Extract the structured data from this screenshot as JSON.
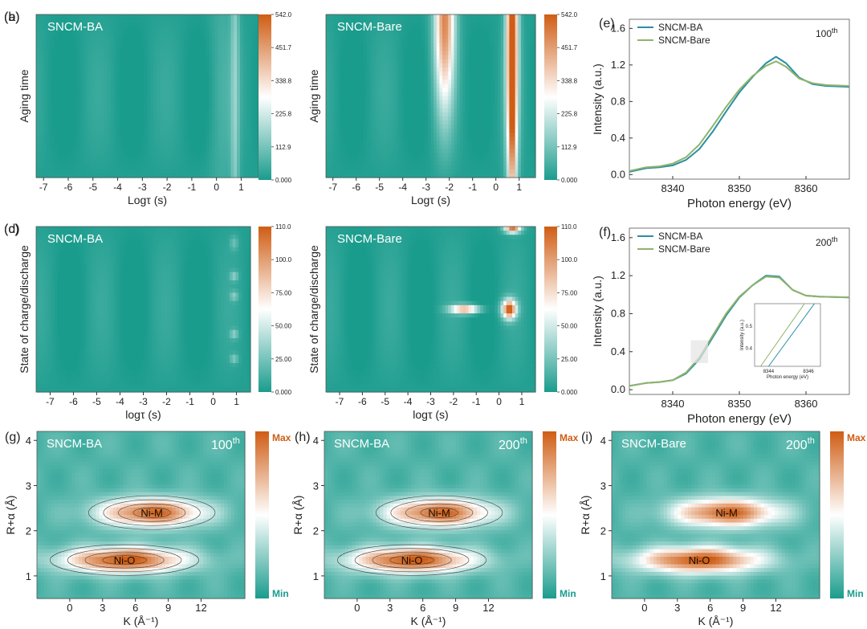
{
  "figure": {
    "colors": {
      "low": "#1a9c8d",
      "mid": "#ffffff",
      "high": "#cf5d14",
      "ba_line": "#2a8fa3",
      "bare_line": "#8fb36b",
      "contour": "#333333"
    },
    "panels": [
      {
        "id": "a",
        "label": "(a)",
        "type": "heatmap",
        "title": "SNCM-BA",
        "ylabel": "Aging time",
        "xlabel": "Logτ (s)",
        "xticks": [
          "-7",
          "-6",
          "-5",
          "-4",
          "-3",
          "-2",
          "-1",
          "0",
          "1"
        ],
        "colorbar": [
          "0.000",
          "112.9",
          "225.8",
          "338.8",
          "451.7",
          "542.0"
        ],
        "xlim": [
          -7.3,
          1.7
        ],
        "ylim": [
          0,
          1
        ],
        "vmax": 542,
        "features": [
          {
            "x": 0.75,
            "y": 0.5,
            "sx": 0.12,
            "sy": 2.0,
            "amp": 0.2
          },
          {
            "x": 0.2,
            "y": 0.5,
            "sx": 0.35,
            "sy": 2.0,
            "amp": 0.06
          }
        ]
      },
      {
        "id": "b",
        "label": "(b)",
        "type": "heatmap",
        "title": "SNCM-Bare",
        "ylabel": "Aging time",
        "xlabel": "Logτ (s)",
        "xticks": [
          "-7",
          "-6",
          "-5",
          "-4",
          "-3",
          "-2",
          "-1",
          "0",
          "1"
        ],
        "colorbar": [
          "0.000",
          "112.9",
          "225.8",
          "338.8",
          "451.7",
          "542.0"
        ],
        "xlim": [
          -7.3,
          1.7
        ],
        "ylim": [
          0,
          1
        ],
        "vmax": 542,
        "features": [
          {
            "x": 0.7,
            "y": 0.9,
            "sx": 0.18,
            "sy": 0.7,
            "amp": 1.0
          },
          {
            "x": -2.2,
            "y": 1.0,
            "sx": 0.3,
            "sy": 0.4,
            "amp": 0.85
          },
          {
            "x": 0.7,
            "y": 0.3,
            "sx": 0.1,
            "sy": 0.5,
            "amp": 0.35
          }
        ]
      },
      {
        "id": "c",
        "label": "(c)",
        "type": "heatmap",
        "title": "SNCM-BA",
        "ylabel": "State of charge/discharge",
        "xlabel": "logτ (s)",
        "xticks": [
          "-7",
          "-6",
          "-5",
          "-4",
          "-3",
          "-2",
          "-1",
          "0",
          "1"
        ],
        "colorbar": [
          "0.000",
          "25.00",
          "50.00",
          "75.00",
          "100.0",
          "110.0"
        ],
        "xlim": [
          -7.6,
          1.6
        ],
        "ylim": [
          0,
          1
        ],
        "vmax": 110,
        "features": [
          {
            "x": 0.9,
            "y": 0.7,
            "sx": 0.12,
            "sy": 0.02,
            "amp": 0.22
          },
          {
            "x": 0.9,
            "y": 0.58,
            "sx": 0.12,
            "sy": 0.02,
            "amp": 0.2
          },
          {
            "x": 0.9,
            "y": 0.35,
            "sx": 0.12,
            "sy": 0.02,
            "amp": 0.22
          },
          {
            "x": 0.9,
            "y": 0.2,
            "sx": 0.12,
            "sy": 0.02,
            "amp": 0.2
          },
          {
            "x": 0.9,
            "y": 0.9,
            "sx": 0.12,
            "sy": 0.03,
            "amp": 0.15
          }
        ]
      },
      {
        "id": "d",
        "label": "(d)",
        "type": "heatmap",
        "title": "SNCM-Bare",
        "ylabel": "State of charge/discharge",
        "xlabel": "logτ (s)",
        "xticks": [
          "-7",
          "-6",
          "-5",
          "-4",
          "-3",
          "-2",
          "-1",
          "0",
          "1"
        ],
        "colorbar": [
          "0.000",
          "25.00",
          "50.00",
          "75.00",
          "100.0",
          "110.0"
        ],
        "xlim": [
          -7.6,
          1.6
        ],
        "ylim": [
          0,
          1
        ],
        "vmax": 110,
        "features": [
          {
            "x": 0.45,
            "y": 0.5,
            "sx": 0.22,
            "sy": 0.04,
            "amp": 1.0
          },
          {
            "x": -1.5,
            "y": 0.5,
            "sx": 0.45,
            "sy": 0.018,
            "amp": 0.8
          },
          {
            "x": 0.6,
            "y": 0.99,
            "sx": 0.25,
            "sy": 0.02,
            "amp": 0.9
          }
        ]
      },
      {
        "id": "e",
        "label": "(e)",
        "type": "line",
        "annotation": "100",
        "annotation_sup": "th",
        "xlabel": "Photon energy (eV)",
        "ylabel": "Intensity (a.u.)",
        "xticks": [
          "8340",
          "8350",
          "8360"
        ],
        "yticks": [
          "0.0",
          "0.4",
          "0.8",
          "1.2",
          "1.6"
        ],
        "xlim": [
          8333.5,
          8366.5
        ],
        "ylim": [
          -0.05,
          1.7
        ],
        "series": [
          {
            "name": "SNCM-BA",
            "x": [
              8333.5,
              8336,
              8338,
              8340,
              8342,
              8344,
              8346,
              8348,
              8350,
              8352,
              8354,
              8355.5,
              8357,
              8359,
              8361,
              8363,
              8366.5
            ],
            "y": [
              0.03,
              0.07,
              0.08,
              0.1,
              0.16,
              0.28,
              0.47,
              0.69,
              0.9,
              1.07,
              1.22,
              1.29,
              1.22,
              1.06,
              0.99,
              0.97,
              0.96
            ]
          },
          {
            "name": "SNCM-Bare",
            "x": [
              8333.5,
              8336,
              8338,
              8340,
              8342,
              8344,
              8346,
              8348,
              8350,
              8352,
              8354,
              8355.5,
              8357,
              8359,
              8361,
              8363,
              8366.5
            ],
            "y": [
              0.04,
              0.08,
              0.09,
              0.12,
              0.19,
              0.33,
              0.53,
              0.74,
              0.93,
              1.08,
              1.19,
              1.24,
              1.18,
              1.05,
              1.0,
              0.98,
              0.97
            ]
          }
        ]
      },
      {
        "id": "f",
        "label": "(f)",
        "type": "line",
        "annotation": "200",
        "annotation_sup": "th",
        "xlabel": "Photon energy (eV)",
        "ylabel": "Intensity (a.u.)",
        "xticks": [
          "8340",
          "8350",
          "8360"
        ],
        "yticks": [
          "0.0",
          "0.4",
          "0.8",
          "1.2",
          "1.6"
        ],
        "xlim": [
          8333.5,
          8366.5
        ],
        "ylim": [
          -0.05,
          1.7
        ],
        "series": [
          {
            "name": "SNCM-BA",
            "x": [
              8333.5,
              8336,
              8338,
              8340,
              8342,
              8344,
              8346,
              8348,
              8350,
              8352,
              8354,
              8356,
              8358,
              8360,
              8362,
              8366.5
            ],
            "y": [
              0.04,
              0.07,
              0.08,
              0.1,
              0.17,
              0.32,
              0.55,
              0.78,
              0.97,
              1.1,
              1.2,
              1.19,
              1.05,
              0.99,
              0.98,
              0.97
            ]
          },
          {
            "name": "SNCM-Bare",
            "x": [
              8333.5,
              8336,
              8338,
              8340,
              8342,
              8344,
              8346,
              8348,
              8350,
              8352,
              8354,
              8356,
              8358,
              8360,
              8362,
              8366.5
            ],
            "y": [
              0.04,
              0.07,
              0.08,
              0.1,
              0.18,
              0.34,
              0.57,
              0.8,
              0.98,
              1.1,
              1.19,
              1.18,
              1.05,
              0.99,
              0.98,
              0.97
            ]
          }
        ],
        "inset": {
          "xlabel": "Photon energy (eV)",
          "ylabel": "Intensity (a.u.)",
          "xticks": [
            "8344",
            "8346"
          ],
          "yticks": [
            "0.4",
            "0.5"
          ],
          "xlim": [
            8343.3,
            8346.6
          ],
          "ylim": [
            0.32,
            0.6
          ]
        }
      },
      {
        "id": "g",
        "label": "(g)",
        "type": "wavelet",
        "title": "SNCM-BA",
        "annotation": "100",
        "annotation_sup": "th",
        "xlabel": "K (Å⁻¹)",
        "ylabel": "R+α (Å)",
        "xticks": [
          "0",
          "3",
          "6",
          "9",
          "12"
        ],
        "yticks": [
          "1",
          "2",
          "3",
          "4"
        ],
        "xlim": [
          -3,
          16
        ],
        "ylim": [
          0.5,
          4.2
        ],
        "contours": true,
        "colorbar": [
          "Max",
          "Min"
        ],
        "peaks": [
          {
            "label": "Ni-M",
            "k": 7.5,
            "r": 2.4
          },
          {
            "label": "Ni-O",
            "k": 5.0,
            "r": 1.35
          }
        ]
      },
      {
        "id": "h",
        "label": "(h)",
        "type": "wavelet",
        "title": "SNCM-BA",
        "annotation": "200",
        "annotation_sup": "th",
        "xlabel": "K (Å⁻¹)",
        "ylabel": "R+α (Å)",
        "xticks": [
          "0",
          "3",
          "6",
          "9",
          "12"
        ],
        "yticks": [
          "1",
          "2",
          "3",
          "4"
        ],
        "xlim": [
          -3,
          16
        ],
        "ylim": [
          0.5,
          4.2
        ],
        "contours": true,
        "colorbar": [
          "Max",
          "Min"
        ],
        "peaks": [
          {
            "label": "Ni-M",
            "k": 7.5,
            "r": 2.4
          },
          {
            "label": "Ni-O",
            "k": 5.0,
            "r": 1.35
          }
        ]
      },
      {
        "id": "i",
        "label": "(i)",
        "type": "wavelet",
        "title": "SNCM-Bare",
        "annotation": "200",
        "annotation_sup": "th",
        "xlabel": "K (Å⁻¹)",
        "ylabel": "R+α (Å)",
        "xticks": [
          "0",
          "3",
          "6",
          "9",
          "12"
        ],
        "yticks": [
          "1",
          "2",
          "3",
          "4"
        ],
        "xlim": [
          -3,
          16
        ],
        "ylim": [
          0.5,
          4.2
        ],
        "contours": false,
        "colorbar": [
          "Max",
          "Min"
        ],
        "peaks": [
          {
            "label": "Ni-M",
            "k": 7.5,
            "r": 2.4
          },
          {
            "label": "Ni-O",
            "k": 5.0,
            "r": 1.35
          }
        ]
      }
    ]
  },
  "chart_data": [
    {
      "panel": "a",
      "type": "heatmap",
      "title": "SNCM-BA",
      "xlabel": "Logτ (s)",
      "ylabel": "Aging time",
      "xlim": [
        -7.3,
        1.7
      ],
      "colorbar_range": [
        0,
        542.0
      ],
      "hotspots": [
        {
          "logtau": 0.75,
          "intensity": 110
        }
      ]
    },
    {
      "panel": "b",
      "type": "heatmap",
      "title": "SNCM-Bare",
      "xlabel": "Logτ (s)",
      "ylabel": "Aging time",
      "xlim": [
        -7.3,
        1.7
      ],
      "colorbar_range": [
        0,
        542.0
      ],
      "hotspots": [
        {
          "logtau": -2.2,
          "intensity": 450
        },
        {
          "logtau": 0.7,
          "intensity": 542
        }
      ]
    },
    {
      "panel": "c",
      "type": "heatmap",
      "title": "SNCM-BA",
      "xlabel": "logτ (s)",
      "ylabel": "State of charge/discharge",
      "xlim": [
        -7.6,
        1.6
      ],
      "colorbar_range": [
        0,
        110.0
      ],
      "hotspots": [
        {
          "logtau": 0.9,
          "intensity": 25
        }
      ]
    },
    {
      "panel": "d",
      "type": "heatmap",
      "title": "SNCM-Bare",
      "xlabel": "logτ (s)",
      "ylabel": "State of charge/discharge",
      "xlim": [
        -7.6,
        1.6
      ],
      "colorbar_range": [
        0,
        110.0
      ],
      "hotspots": [
        {
          "logtau": -1.5,
          "intensity": 90
        },
        {
          "logtau": 0.45,
          "intensity": 110
        }
      ]
    },
    {
      "panel": "e",
      "type": "line",
      "xlabel": "Photon energy (eV)",
      "ylabel": "Intensity (a.u.)",
      "xlim": [
        8333.5,
        8366.5
      ],
      "ylim": [
        -0.05,
        1.7
      ],
      "series": [
        {
          "name": "SNCM-BA",
          "peak": [
            8355.5,
            1.29
          ]
        },
        {
          "name": "SNCM-Bare",
          "peak": [
            8355.5,
            1.24
          ]
        }
      ]
    },
    {
      "panel": "f",
      "type": "line",
      "xlabel": "Photon energy (eV)",
      "ylabel": "Intensity (a.u.)",
      "xlim": [
        8333.5,
        8366.5
      ],
      "ylim": [
        -0.05,
        1.7
      ],
      "series": [
        {
          "name": "SNCM-BA",
          "peak": [
            8355,
            1.2
          ]
        },
        {
          "name": "SNCM-Bare",
          "peak": [
            8355,
            1.19
          ]
        }
      ]
    },
    {
      "panel": "g",
      "type": "heatmap",
      "title": "SNCM-BA",
      "xlabel": "K (Å⁻¹)",
      "ylabel": "R+α (Å)",
      "peaks": [
        {
          "label": "Ni-M",
          "k": 7.5,
          "r": 2.4
        },
        {
          "label": "Ni-O",
          "k": 5.0,
          "r": 1.35
        }
      ]
    },
    {
      "panel": "h",
      "type": "heatmap",
      "title": "SNCM-BA",
      "xlabel": "K (Å⁻¹)",
      "ylabel": "R+α (Å)",
      "peaks": [
        {
          "label": "Ni-M",
          "k": 7.5,
          "r": 2.4
        },
        {
          "label": "Ni-O",
          "k": 5.0,
          "r": 1.35
        }
      ]
    },
    {
      "panel": "i",
      "type": "heatmap",
      "title": "SNCM-Bare",
      "xlabel": "K (Å⁻¹)",
      "ylabel": "R+α (Å)",
      "peaks": [
        {
          "label": "Ni-M",
          "k": 7.5,
          "r": 2.4
        },
        {
          "label": "Ni-O",
          "k": 5.0,
          "r": 1.35
        }
      ]
    }
  ]
}
